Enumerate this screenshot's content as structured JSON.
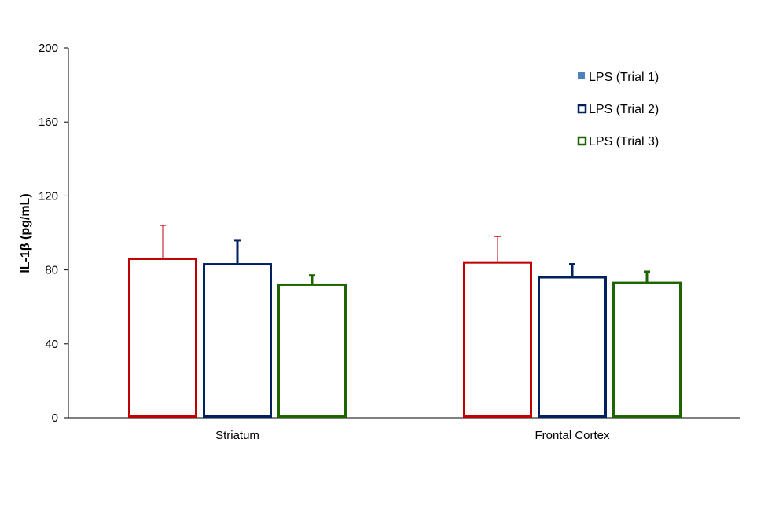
{
  "chart_data": {
    "type": "bar",
    "title": "",
    "xlabel": "",
    "ylabel": "IL-1β (pg/mL)",
    "ylim": [
      0,
      200
    ],
    "yticks": [
      0,
      40,
      80,
      120,
      160,
      200
    ],
    "grid": false,
    "legend_position": "top-right",
    "categories": [
      "Striatum",
      "Frontal Cortex"
    ],
    "series": [
      {
        "name": "LPS (Trial 1)",
        "color": "#c00000",
        "values": [
          86,
          84
        ],
        "errors": [
          18,
          14
        ]
      },
      {
        "name": "LPS (Trial 2)",
        "color": "#002060",
        "values": [
          83,
          76
        ],
        "errors": [
          13,
          7
        ]
      },
      {
        "name": "LPS (Trial 3)",
        "color": "#1e6400",
        "values": [
          72,
          73
        ],
        "errors": [
          5,
          6
        ]
      }
    ],
    "legend_markers": [
      {
        "series": "LPS (Trial 1)",
        "marker_color": "#4f81bd",
        "filled": true
      },
      {
        "series": "LPS (Trial 2)",
        "marker_color": "#002060",
        "filled": false
      },
      {
        "series": "LPS (Trial 3)",
        "marker_color": "#1e6400",
        "filled": false
      }
    ]
  }
}
